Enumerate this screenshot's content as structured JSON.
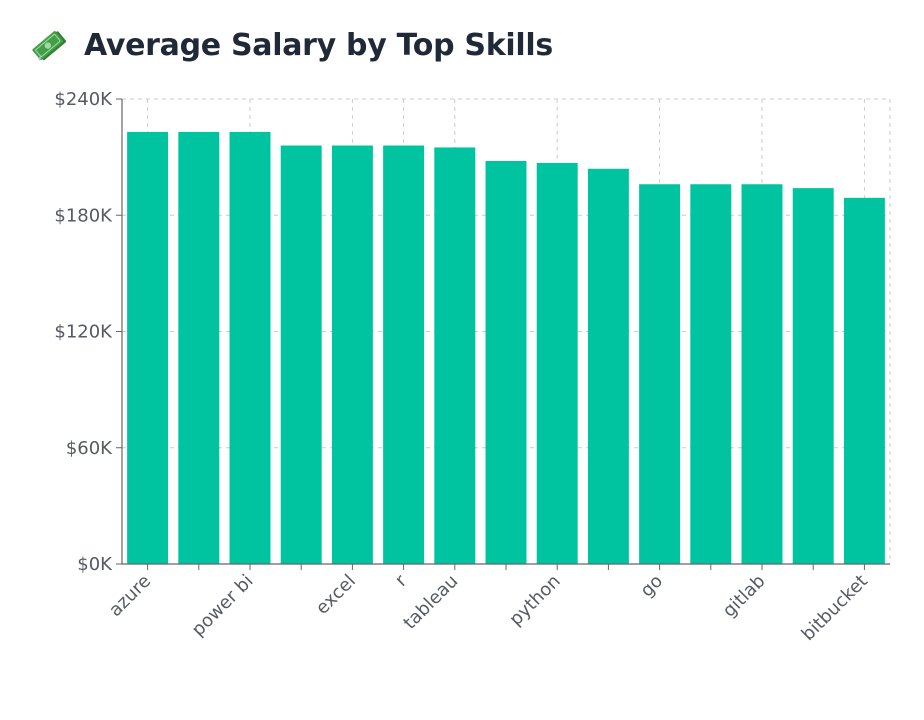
{
  "header": {
    "title": "Average Salary by Top Skills",
    "icon": "money-bills-icon"
  },
  "chart_data": {
    "type": "bar",
    "title": "Average Salary by Top Skills",
    "xlabel": "",
    "ylabel": "",
    "ylim": [
      0,
      240000
    ],
    "yticks": [
      "$0K",
      "$60K",
      "$120K",
      "$180K",
      "$240K"
    ],
    "ytick_values": [
      0,
      60000,
      120000,
      180000,
      240000
    ],
    "categories": [
      "azure",
      "",
      "power bi",
      "",
      "excel",
      "r",
      "tableau",
      "",
      "python",
      "",
      "go",
      "",
      "gitlab",
      "",
      "bitbucket"
    ],
    "values": [
      223000,
      223000,
      223000,
      216000,
      216000,
      216000,
      215000,
      208000,
      207000,
      204000,
      196000,
      196000,
      196000,
      194000,
      189000
    ],
    "grid": true,
    "legend": "none",
    "bar_color": "#00c49f",
    "axis_color": "#666666",
    "grid_color": "#cccccc"
  }
}
